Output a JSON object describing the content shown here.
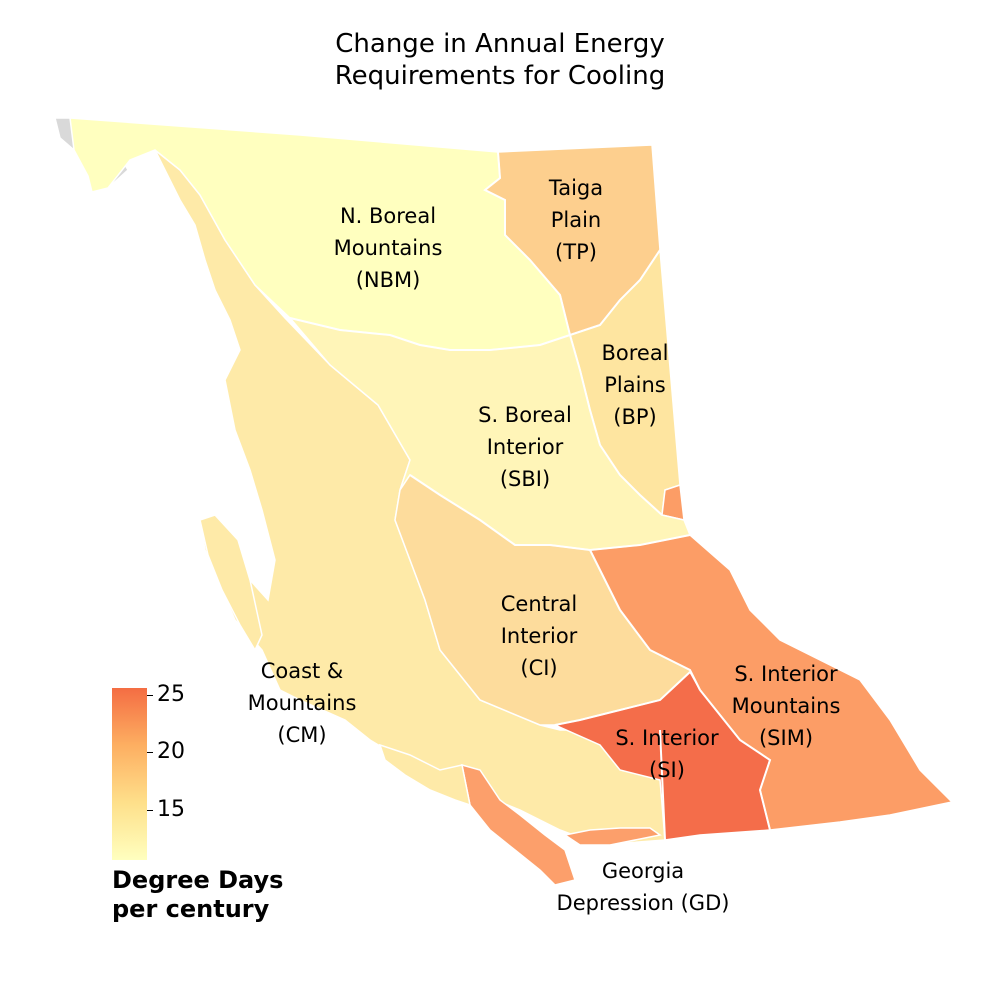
{
  "title_line1": "Change in Annual Energy",
  "title_line2": "Requirements for Cooling",
  "colors": {
    "NBM": "#ffffbf",
    "SBI": "#fff5b8",
    "CM": "#feeaa8",
    "BP": "#fee5a0",
    "CI": "#fddc9c",
    "TP": "#fdcf8e",
    "GD": "#fc9f6b",
    "SIM": "#fc9d66",
    "SI": "#f46d4a",
    "outside": "#d9d9d9"
  },
  "regions": {
    "NBM": {
      "line1": "N. Boreal",
      "line2": "Mountains",
      "line3": "(NBM)"
    },
    "TP": {
      "line1": "Taiga",
      "line2": "Plain",
      "line3": "(TP)"
    },
    "BP": {
      "line1": "Boreal",
      "line2": "Plains",
      "line3": "(BP)"
    },
    "SBI": {
      "line1": "S. Boreal",
      "line2": "Interior",
      "line3": "(SBI)"
    },
    "CI": {
      "line1": "Central",
      "line2": "Interior",
      "line3": "(CI)"
    },
    "CM": {
      "line1": "Coast &",
      "line2": "Mountains",
      "line3": "(CM)"
    },
    "SIM": {
      "line1": "S. Interior",
      "line2": "Mountains",
      "line3": "(SIM)"
    },
    "SI": {
      "line1": "S. Interior",
      "line2": "(SI)"
    },
    "GD": {
      "line1": "Georgia",
      "line2": "Depression (GD)"
    }
  },
  "legend": {
    "ticks": [
      "25",
      "20",
      "15"
    ],
    "title_line1": "Degree Days",
    "title_line2": "per century"
  }
}
